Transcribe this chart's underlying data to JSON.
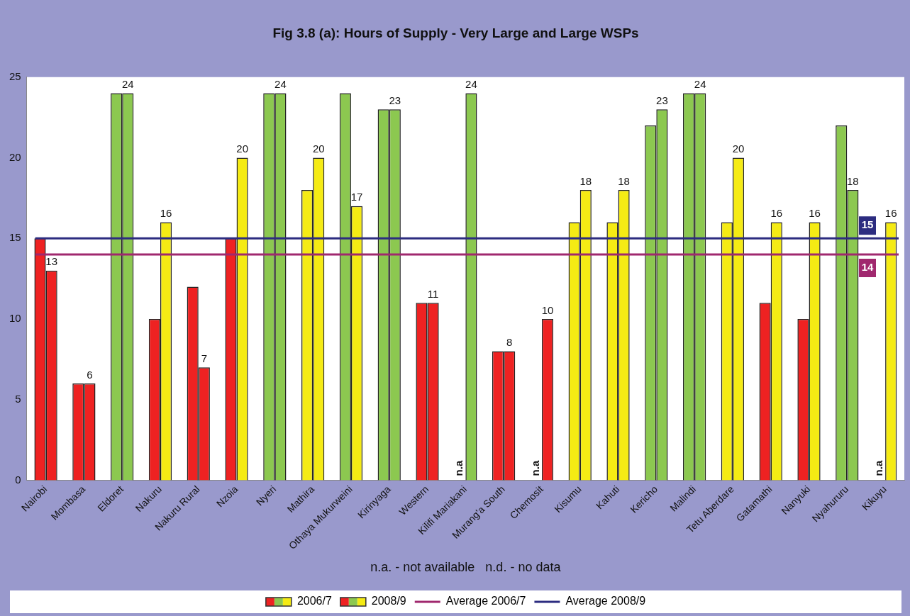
{
  "chart_data": {
    "type": "bar",
    "title": "Fig 3.8 (a): Hours of Supply - Very Large and Large WSPs",
    "categories": [
      "Nairobi",
      "Mombasa",
      "Eldoret",
      "Nakuru",
      "Nakuru Rural",
      "Nzoia",
      "Nyeri",
      "Mathira",
      "Othaya Mukurweini",
      "Kirinyaga",
      "Western",
      "Kilifi Mariakani",
      "Murang'a South",
      "Chemosit",
      "Kisumu",
      "Kahuti",
      "Kericho",
      "Malindi",
      "Tetu Aberdare",
      "Gatamathi",
      "Nanyuki",
      "Nyahururu",
      "Kikuyu"
    ],
    "series": [
      {
        "name": "2006/7",
        "values": [
          15,
          6,
          24,
          10,
          12,
          15,
          24,
          18,
          24,
          23,
          11,
          null,
          8,
          null,
          16,
          16,
          22,
          24,
          16,
          11,
          10,
          22,
          null
        ],
        "colors": [
          "#ee2222",
          "#ee2222",
          "#8cc850",
          "#ee2222",
          "#ee2222",
          "#ee2222",
          "#8cc850",
          "#f5eb14",
          "#8cc850",
          "#8cc850",
          "#ee2222",
          null,
          "#ee2222",
          null,
          "#f5eb14",
          "#f5eb14",
          "#8cc850",
          "#8cc850",
          "#f5eb14",
          "#ee2222",
          "#ee2222",
          "#8cc850",
          null
        ],
        "value_labels": [
          null,
          null,
          null,
          null,
          null,
          null,
          null,
          null,
          null,
          null,
          null,
          "n.a",
          null,
          "n.a",
          null,
          null,
          null,
          null,
          null,
          null,
          null,
          null,
          "n.a"
        ]
      },
      {
        "name": "2008/9",
        "values": [
          13,
          6,
          24,
          16,
          7,
          20,
          24,
          20,
          17,
          23,
          11,
          24,
          8,
          10,
          18,
          18,
          23,
          24,
          20,
          16,
          16,
          18,
          16
        ],
        "colors": [
          "#ee2222",
          "#ee2222",
          "#8cc850",
          "#f5eb14",
          "#ee2222",
          "#f5eb14",
          "#8cc850",
          "#f5eb14",
          "#f5eb14",
          "#8cc850",
          "#ee2222",
          "#8cc850",
          "#ee2222",
          "#ee2222",
          "#f5eb14",
          "#f5eb14",
          "#8cc850",
          "#8cc850",
          "#f5eb14",
          "#f5eb14",
          "#f5eb14",
          "#8cc850",
          "#f5eb14"
        ],
        "value_labels": [
          "13",
          "6",
          "24",
          "16",
          "7",
          "20",
          "24",
          "20",
          "17",
          "23",
          "11",
          "24",
          "8",
          "10",
          "18",
          "18",
          "23",
          "24",
          "20",
          "16",
          "16",
          "18",
          "16"
        ]
      }
    ],
    "ylim": [
      0,
      25
    ],
    "yticks": [
      0,
      5,
      10,
      15,
      20,
      25
    ],
    "grid": false,
    "legend": "bottom",
    "ref_lines": [
      {
        "axis": "y",
        "value": 14,
        "label": "Average 2006/7",
        "color": "#a0286e"
      },
      {
        "axis": "y",
        "value": 15,
        "label": "Average 2008/9",
        "color": "#2c2c80"
      }
    ],
    "annotations": [
      "n.a. - not available   n.d. - no data",
      {
        "text": "15",
        "y": 15
      },
      {
        "text": "14",
        "y": 14
      }
    ]
  }
}
